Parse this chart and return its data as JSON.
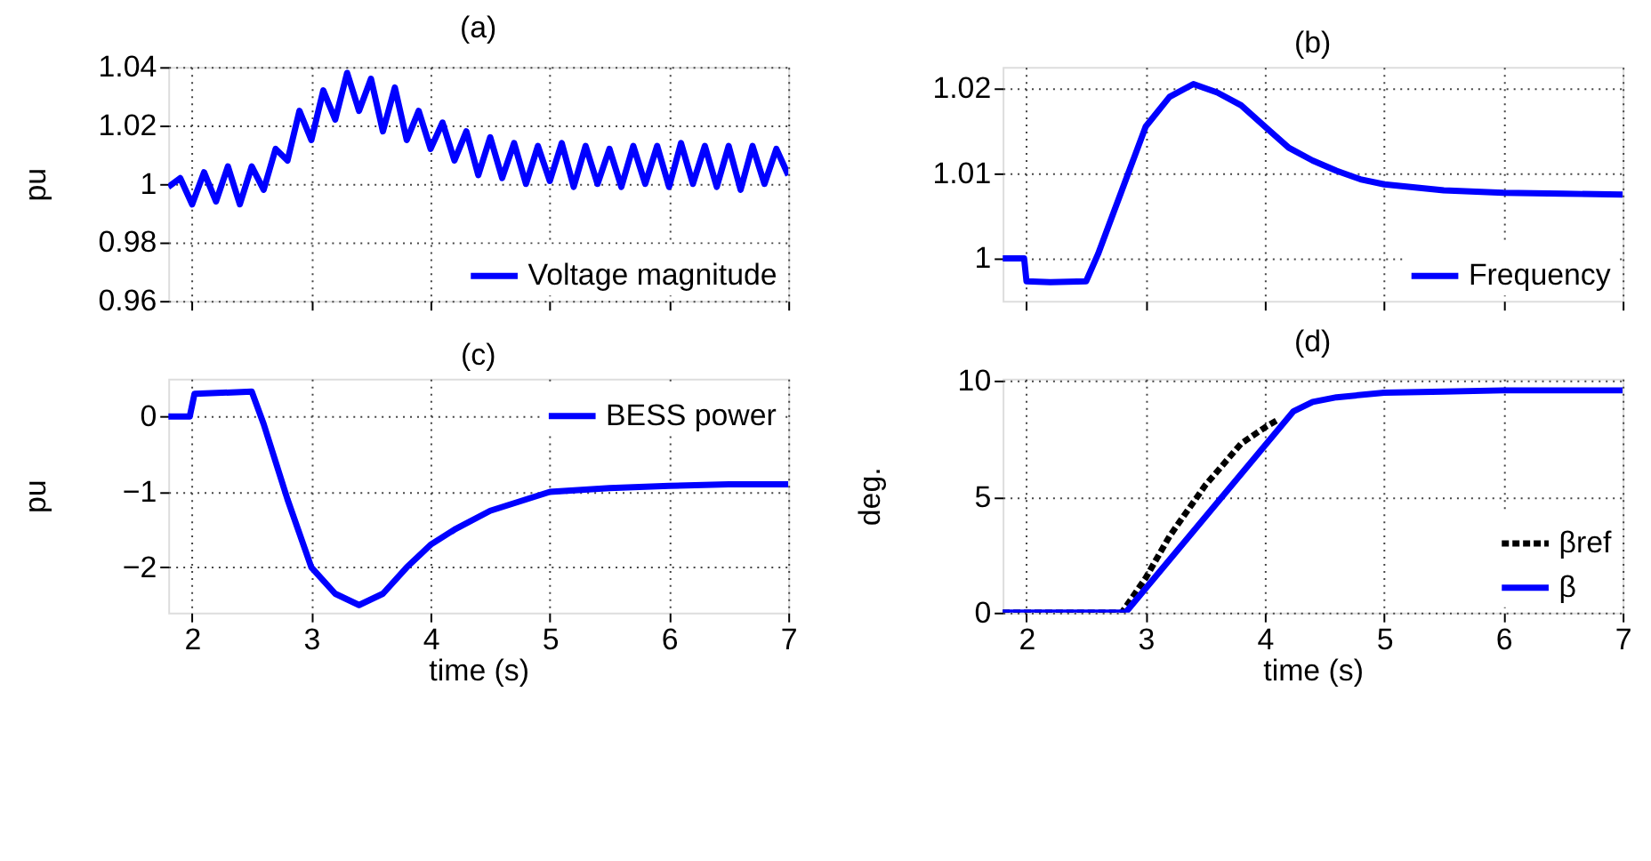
{
  "chart_data": [
    {
      "type": "line",
      "title": "(a)",
      "ylabel": "pu",
      "xlim": [
        1.8,
        7
      ],
      "xticks": [
        2,
        3,
        4,
        5,
        6,
        7
      ],
      "ylim": [
        0.96,
        1.04
      ],
      "yticks": [
        0.96,
        0.98,
        1,
        1.02,
        1.04
      ],
      "grid": true,
      "legend": "bottom right",
      "tick_labels": "y",
      "series": [
        {
          "name": "Voltage magnitude",
          "color": "#0000ff",
          "line_style": "solid",
          "x": [
            1.8,
            1.9,
            2.0,
            2.1,
            2.2,
            2.3,
            2.4,
            2.5,
            2.6,
            2.7,
            2.8,
            2.9,
            3.0,
            3.1,
            3.2,
            3.3,
            3.4,
            3.5,
            3.6,
            3.7,
            3.8,
            3.9,
            4.0,
            4.1,
            4.2,
            4.3,
            4.4,
            4.5,
            4.6,
            4.7,
            4.8,
            4.9,
            5.0,
            5.1,
            5.2,
            5.3,
            5.4,
            5.5,
            5.6,
            5.7,
            5.8,
            5.9,
            6.0,
            6.1,
            6.2,
            6.3,
            6.4,
            6.5,
            6.6,
            6.7,
            6.8,
            6.9,
            7.0
          ],
          "values": [
            0.999,
            1.002,
            0.993,
            1.004,
            0.994,
            1.006,
            0.993,
            1.006,
            0.998,
            1.012,
            1.008,
            1.025,
            1.015,
            1.032,
            1.022,
            1.038,
            1.025,
            1.036,
            1.018,
            1.033,
            1.015,
            1.025,
            1.012,
            1.021,
            1.008,
            1.018,
            1.003,
            1.016,
            1.002,
            1.014,
            1.0,
            1.013,
            1.001,
            1.014,
            0.999,
            1.013,
            1.0,
            1.012,
            0.999,
            1.013,
            1.0,
            1.013,
            0.999,
            1.014,
            1.0,
            1.013,
            0.999,
            1.013,
            0.998,
            1.013,
            1.0,
            1.012,
            1.003
          ]
        }
      ]
    },
    {
      "type": "line",
      "title": "(b)",
      "xlim": [
        1.8,
        7
      ],
      "xticks": [
        2,
        3,
        4,
        5,
        6,
        7
      ],
      "ylim": [
        0.995,
        1.0225
      ],
      "yticks": [
        1,
        1.01,
        1.02
      ],
      "grid": true,
      "legend": "bottom right",
      "tick_labels": "y",
      "series": [
        {
          "name": "Frequency",
          "color": "#0000ff",
          "line_style": "solid",
          "x": [
            1.8,
            1.98,
            2.0,
            2.2,
            2.5,
            2.6,
            2.8,
            3.0,
            3.2,
            3.4,
            3.6,
            3.8,
            4.0,
            4.2,
            4.4,
            4.6,
            4.8,
            5.0,
            5.5,
            6.0,
            6.5,
            7.0
          ],
          "values": [
            1.0,
            1.0,
            0.9973,
            0.9972,
            0.9973,
            1.0005,
            1.008,
            1.0155,
            1.019,
            1.0205,
            1.0195,
            1.018,
            1.0155,
            1.013,
            1.0115,
            1.0103,
            1.0093,
            1.0087,
            1.008,
            1.0077,
            1.0076,
            1.0075
          ]
        }
      ]
    },
    {
      "type": "line",
      "title": "(c)",
      "xlabel": "time (s)",
      "ylabel": "pu",
      "xlim": [
        1.8,
        7
      ],
      "xticks": [
        2,
        3,
        4,
        5,
        6,
        7
      ],
      "ylim": [
        -2.6,
        0.5
      ],
      "yticks": [
        -2,
        -1,
        0
      ],
      "grid": true,
      "legend": "top right",
      "series": [
        {
          "name": "BESS power",
          "color": "#0000ff",
          "line_style": "solid",
          "x": [
            1.8,
            1.98,
            2.02,
            2.5,
            2.6,
            2.8,
            3.0,
            3.2,
            3.4,
            3.6,
            3.8,
            4.0,
            4.2,
            4.5,
            4.8,
            5.0,
            5.5,
            6.0,
            6.5,
            7.0
          ],
          "values": [
            0,
            0,
            0.3,
            0.33,
            -0.1,
            -1.1,
            -2.0,
            -2.35,
            -2.5,
            -2.35,
            -2.0,
            -1.7,
            -1.5,
            -1.25,
            -1.1,
            -1.0,
            -0.95,
            -0.92,
            -0.9,
            -0.9
          ]
        }
      ]
    },
    {
      "type": "line",
      "title": "(d)",
      "xlabel": "time (s)",
      "ylabel": "deg.",
      "xlim": [
        1.8,
        7
      ],
      "xticks": [
        2,
        3,
        4,
        5,
        6,
        7
      ],
      "ylim": [
        0,
        10.1
      ],
      "yticks": [
        0,
        5,
        10
      ],
      "grid": true,
      "legend": "bottom right",
      "series": [
        {
          "name": "βref",
          "color": "#000000",
          "line_style": "dashed",
          "x": [
            1.8,
            2.8,
            3.0,
            3.2,
            3.5,
            3.8,
            4.0,
            4.1
          ],
          "values": [
            0,
            0,
            1.5,
            3.3,
            5.5,
            7.3,
            8.0,
            8.3
          ]
        },
        {
          "name": "β",
          "color": "#0000ff",
          "line_style": "solid",
          "x": [
            1.8,
            2.83,
            4.24,
            4.4,
            4.6,
            5.0,
            5.5,
            6.0,
            7.0
          ],
          "values": [
            0,
            0,
            8.7,
            9.1,
            9.3,
            9.5,
            9.55,
            9.6,
            9.6
          ]
        }
      ]
    }
  ]
}
